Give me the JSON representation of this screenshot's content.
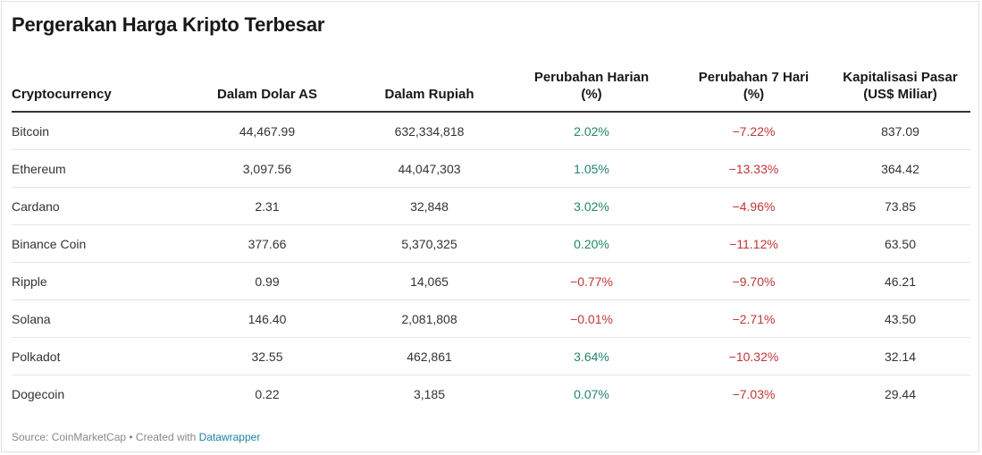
{
  "title": "Pergerakan Harga Kripto Terbesar",
  "colors": {
    "positive": "#23866c",
    "negative": "#c03535",
    "link": "#1d81a2"
  },
  "table": {
    "headers": {
      "col1": "Cryptocurrency",
      "col2": "Dalam Dolar AS",
      "col3": "Dalam Rupiah",
      "col4_line1": "Perubahan Harian",
      "col4_line2": "(%)",
      "col5_line1": "Perubahan 7 Hari",
      "col5_line2": "(%)",
      "col6_line1": "Kapitalisasi Pasar",
      "col6_line2": "(US$ Miliar)"
    },
    "rows": [
      {
        "name": "Bitcoin",
        "usd": "44,467.99",
        "idr": "632,334,818",
        "daily": "2.02%",
        "daily_sign": "pos",
        "weekly": "−7.22%",
        "weekly_sign": "neg",
        "cap": "837.09"
      },
      {
        "name": "Ethereum",
        "usd": "3,097.56",
        "idr": "44,047,303",
        "daily": "1.05%",
        "daily_sign": "pos",
        "weekly": "−13.33%",
        "weekly_sign": "neg",
        "cap": "364.42"
      },
      {
        "name": "Cardano",
        "usd": "2.31",
        "idr": "32,848",
        "daily": "3.02%",
        "daily_sign": "pos",
        "weekly": "−4.96%",
        "weekly_sign": "neg",
        "cap": "73.85"
      },
      {
        "name": "Binance Coin",
        "usd": "377.66",
        "idr": "5,370,325",
        "daily": "0.20%",
        "daily_sign": "pos",
        "weekly": "−11.12%",
        "weekly_sign": "neg",
        "cap": "63.50"
      },
      {
        "name": "Ripple",
        "usd": "0.99",
        "idr": "14,065",
        "daily": "−0.77%",
        "daily_sign": "neg",
        "weekly": "−9.70%",
        "weekly_sign": "neg",
        "cap": "46.21"
      },
      {
        "name": "Solana",
        "usd": "146.40",
        "idr": "2,081,808",
        "daily": "−0.01%",
        "daily_sign": "neg",
        "weekly": "−2.71%",
        "weekly_sign": "neg",
        "cap": "43.50"
      },
      {
        "name": "Polkadot",
        "usd": "32.55",
        "idr": "462,861",
        "daily": "3.64%",
        "daily_sign": "pos",
        "weekly": "−10.32%",
        "weekly_sign": "neg",
        "cap": "32.14"
      },
      {
        "name": "Dogecoin",
        "usd": "0.22",
        "idr": "3,185",
        "daily": "0.07%",
        "daily_sign": "pos",
        "weekly": "−7.03%",
        "weekly_sign": "neg",
        "cap": "29.44"
      }
    ]
  },
  "footer": {
    "source_text": "Source: CoinMarketCap • Created with ",
    "link_text": "Datawrapper"
  }
}
